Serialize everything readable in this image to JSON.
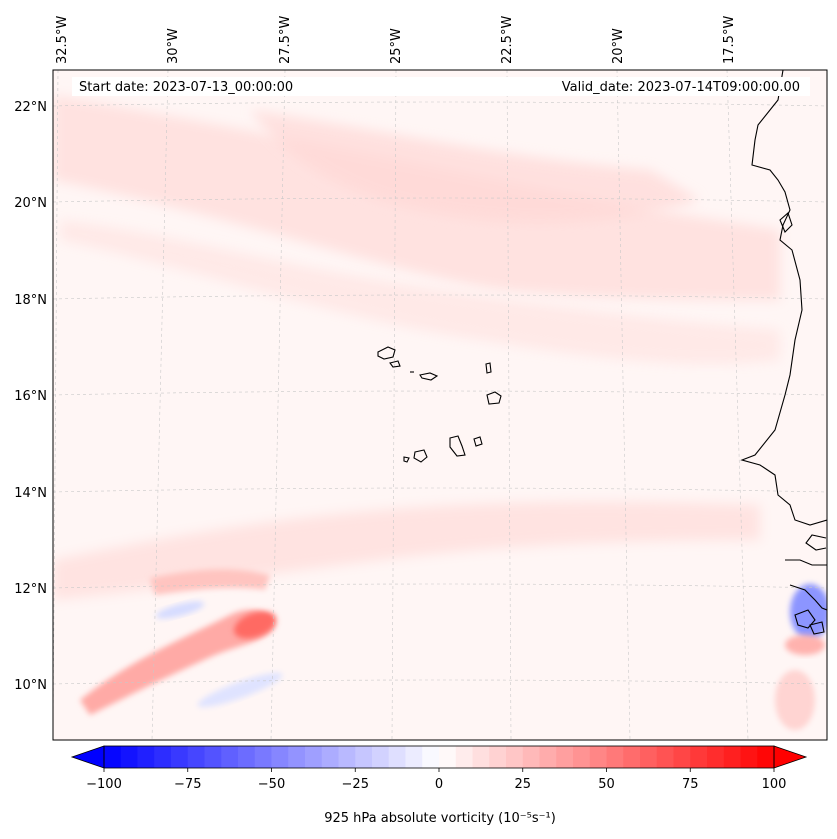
{
  "map": {
    "start_date_text": "Start date: 2023-07-13_00:00:00",
    "valid_date_text": "Valid_date: 2023-07-14T09:00:00.00",
    "lon_labels": [
      "32.5°W",
      "30°W",
      "27.5°W",
      "25°W",
      "22.5°W",
      "20°W",
      "17.5°W"
    ],
    "lat_labels": [
      "22°N",
      "20°N",
      "18°N",
      "16°N",
      "14°N",
      "12°N",
      "10°N"
    ],
    "colors": {
      "negative": "#0000ff",
      "zero": "#ffffff",
      "positive": "#ff0000"
    }
  },
  "colorbar": {
    "label": "925 hPa absolute vorticity (10⁻⁵s⁻¹)",
    "ticks": [
      "−100",
      "−75",
      "−50",
      "−25",
      "0",
      "25",
      "50",
      "75",
      "100"
    ],
    "min": -100,
    "max": 100
  }
}
